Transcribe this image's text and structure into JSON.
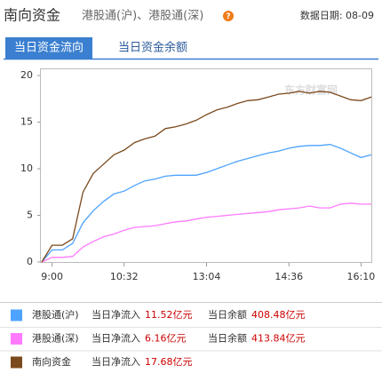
{
  "header": {
    "title": "南向资金",
    "subtitle": "港股通(沪)、港股通(深)",
    "help_icon": "?",
    "date_label": "数据日期: 08-09"
  },
  "tabs": [
    "当日资金流向",
    "当日资金余额"
  ],
  "chart_data": {
    "type": "line",
    "categories": [
      null,
      "9:00",
      null,
      null,
      null,
      null,
      null,
      null,
      "10:32",
      null,
      null,
      null,
      null,
      null,
      null,
      null,
      "13:04",
      null,
      null,
      null,
      null,
      null,
      null,
      null,
      "14:36",
      null,
      null,
      null,
      null,
      null,
      null,
      "16:10",
      null
    ],
    "series": [
      {
        "name": "港股通(沪)",
        "color": "#4da3ff",
        "values": [
          0,
          1.3,
          1.3,
          2,
          4.2,
          5.5,
          6.5,
          7.3,
          7.6,
          8.2,
          8.7,
          8.9,
          9.2,
          9.3,
          9.3,
          9.3,
          9.6,
          10,
          10.4,
          10.8,
          11.1,
          11.4,
          11.7,
          11.9,
          12.2,
          12.4,
          12.5,
          12.5,
          12.6,
          12.2,
          11.7,
          11.2,
          11.5
        ]
      },
      {
        "name": "港股通(深)",
        "color": "#ff7aff",
        "values": [
          0,
          0.5,
          0.5,
          0.6,
          1.6,
          2.2,
          2.7,
          3,
          3.4,
          3.7,
          3.8,
          3.9,
          4.1,
          4.3,
          4.4,
          4.6,
          4.8,
          4.9,
          5,
          5.1,
          5.2,
          5.3,
          5.4,
          5.6,
          5.7,
          5.8,
          6,
          5.8,
          5.8,
          6.2,
          6.3,
          6.2,
          6.2
        ]
      },
      {
        "name": "南向资金",
        "color": "#7b4a1e",
        "values": [
          0,
          1.8,
          1.8,
          2.5,
          7.5,
          9.5,
          10.5,
          11.5,
          12,
          12.8,
          13.2,
          13.5,
          14.3,
          14.5,
          14.8,
          15.2,
          15.8,
          16.3,
          16.6,
          17,
          17.3,
          17.4,
          17.7,
          18,
          18.1,
          18.3,
          18.1,
          18.3,
          18.2,
          17.8,
          17.4,
          17.3,
          17.7
        ]
      }
    ],
    "ylim": [
      0,
      20
    ],
    "yticks": [
      0,
      5,
      10,
      15,
      20
    ],
    "grid": false,
    "watermark": "东方财富网"
  },
  "legend_table": [
    {
      "net_label": "当日净流入",
      "net": "11.52亿元",
      "balance_label": "当日余额",
      "balance": "408.48亿元"
    },
    {
      "net_label": "当日净流入",
      "net": "6.16亿元",
      "balance_label": "当日余额",
      "balance": "413.84亿元"
    },
    {
      "net_label": "当日净流入",
      "net": "17.68亿元"
    }
  ]
}
